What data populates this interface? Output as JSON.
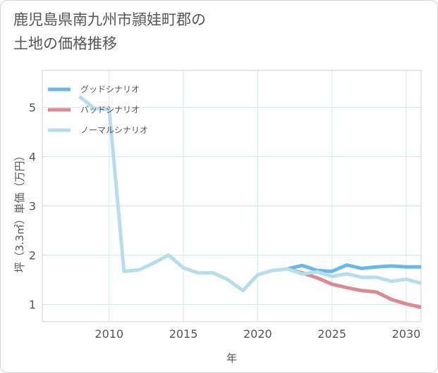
{
  "page": {
    "title_line1": "鹿児島県南九州市頴娃町郡の",
    "title_line2": "土地の価格推移"
  },
  "chart_data": {
    "type": "line",
    "title": "鹿児島県南九州市頴娃町郡の土地の価格推移",
    "xlabel": "年",
    "ylabel": "坪（3.3㎡）単価（万円）",
    "xlim": [
      2005.5,
      2031
    ],
    "ylim": [
      0.65,
      5.75
    ],
    "xticks": [
      2010,
      2015,
      2020,
      2025,
      2030
    ],
    "yticks": [
      1,
      2,
      3,
      4,
      5
    ],
    "grid": true,
    "legend_position": "top-left",
    "series": [
      {
        "name": "グッドシナリオ",
        "color": "#6ab8ea",
        "x": [
          2022,
          2023,
          2024,
          2025,
          2026,
          2027,
          2028,
          2029,
          2030,
          2031
        ],
        "y": [
          1.72,
          1.79,
          1.69,
          1.67,
          1.8,
          1.73,
          1.76,
          1.78,
          1.76,
          1.76
        ]
      },
      {
        "name": "バッドシナリオ",
        "color": "#d98a92",
        "x": [
          2022,
          2023,
          2024,
          2025,
          2026,
          2027,
          2028,
          2029,
          2030,
          2031
        ],
        "y": [
          1.72,
          1.64,
          1.54,
          1.41,
          1.34,
          1.28,
          1.25,
          1.1,
          1.01,
          0.94
        ]
      },
      {
        "name": "ノーマルシナリオ",
        "color": "#b7dcec",
        "x": [
          2008,
          2009,
          2010,
          2011,
          2012,
          2013,
          2014,
          2015,
          2016,
          2017,
          2018,
          2019,
          2020,
          2021,
          2022,
          2023,
          2024,
          2025,
          2026,
          2027,
          2028,
          2029,
          2030,
          2031
        ],
        "y": [
          5.22,
          4.98,
          4.96,
          1.67,
          1.7,
          1.84,
          2.0,
          1.74,
          1.64,
          1.64,
          1.5,
          1.28,
          1.6,
          1.69,
          1.72,
          1.62,
          1.66,
          1.57,
          1.62,
          1.55,
          1.55,
          1.47,
          1.51,
          1.43
        ]
      }
    ]
  }
}
